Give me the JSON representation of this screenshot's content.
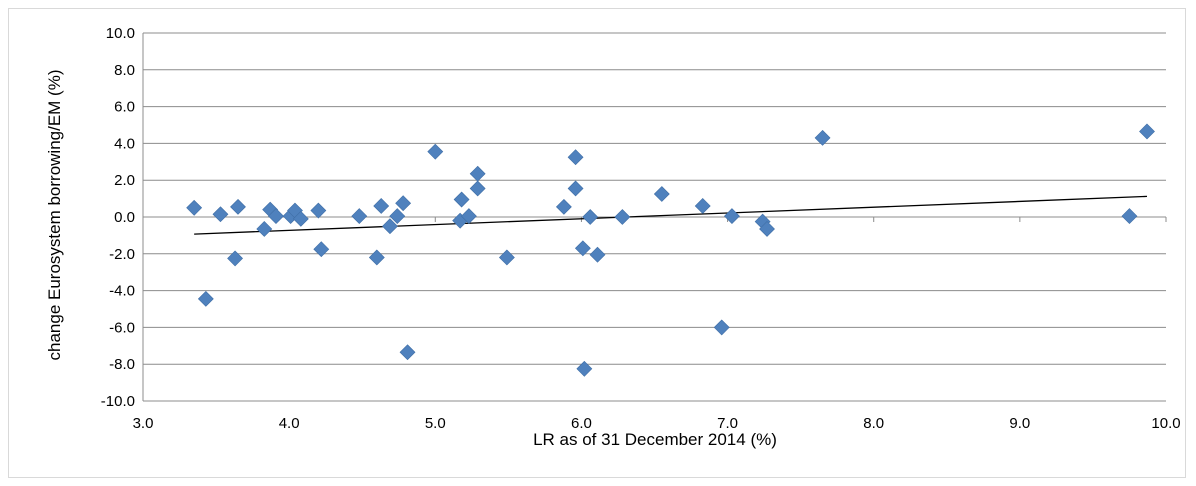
{
  "chart_data": {
    "type": "scatter",
    "title": "",
    "xlabel": "LR as of 31 December 2014 (%)",
    "ylabel": "change Eurosystem borrowing/EM (%)",
    "xlim": [
      3.0,
      10.0
    ],
    "ylim": [
      -10.0,
      10.0
    ],
    "x_ticks": [
      "3.0",
      "4.0",
      "5.0",
      "6.0",
      "7.0",
      "8.0",
      "9.0",
      "10.0"
    ],
    "y_ticks": [
      "10.0",
      "8.0",
      "6.0",
      "4.0",
      "2.0",
      "0.0",
      "-2.0",
      "-4.0",
      "-6.0",
      "-8.0",
      "-10.0"
    ],
    "grid": "horizontal",
    "legend": "none",
    "marker": "diamond",
    "marker_color": "#4f81bd",
    "trendline": {
      "type": "linear",
      "color": "#000000",
      "x": [
        3.35,
        9.87
      ],
      "y": [
        -0.93,
        1.12
      ]
    },
    "series": [
      {
        "points": [
          [
            3.35,
            0.5
          ],
          [
            3.43,
            -4.45
          ],
          [
            3.53,
            0.15
          ],
          [
            3.63,
            -2.25
          ],
          [
            3.65,
            0.55
          ],
          [
            3.83,
            -0.65
          ],
          [
            3.87,
            0.4
          ],
          [
            3.91,
            0.05
          ],
          [
            4.01,
            0.05
          ],
          [
            4.04,
            0.35
          ],
          [
            4.08,
            -0.1
          ],
          [
            4.2,
            0.35
          ],
          [
            4.22,
            -1.75
          ],
          [
            4.48,
            0.05
          ],
          [
            4.6,
            -2.2
          ],
          [
            4.63,
            0.6
          ],
          [
            4.69,
            -0.5
          ],
          [
            4.74,
            0.05
          ],
          [
            4.78,
            0.75
          ],
          [
            4.81,
            -7.35
          ],
          [
            5.0,
            3.55
          ],
          [
            5.17,
            -0.2
          ],
          [
            5.18,
            0.95
          ],
          [
            5.23,
            0.05
          ],
          [
            5.29,
            2.35
          ],
          [
            5.29,
            1.55
          ],
          [
            5.49,
            -2.2
          ],
          [
            5.88,
            0.55
          ],
          [
            5.96,
            3.25
          ],
          [
            5.96,
            1.55
          ],
          [
            6.01,
            -1.7
          ],
          [
            6.02,
            -8.25
          ],
          [
            6.06,
            0.0
          ],
          [
            6.11,
            -2.05
          ],
          [
            6.28,
            0.0
          ],
          [
            6.55,
            1.25
          ],
          [
            6.83,
            0.6
          ],
          [
            6.96,
            -6.0
          ],
          [
            7.03,
            0.05
          ],
          [
            7.24,
            -0.25
          ],
          [
            7.27,
            -0.65
          ],
          [
            7.65,
            4.3
          ],
          [
            9.75,
            0.05
          ],
          [
            9.87,
            4.65
          ]
        ]
      }
    ]
  }
}
